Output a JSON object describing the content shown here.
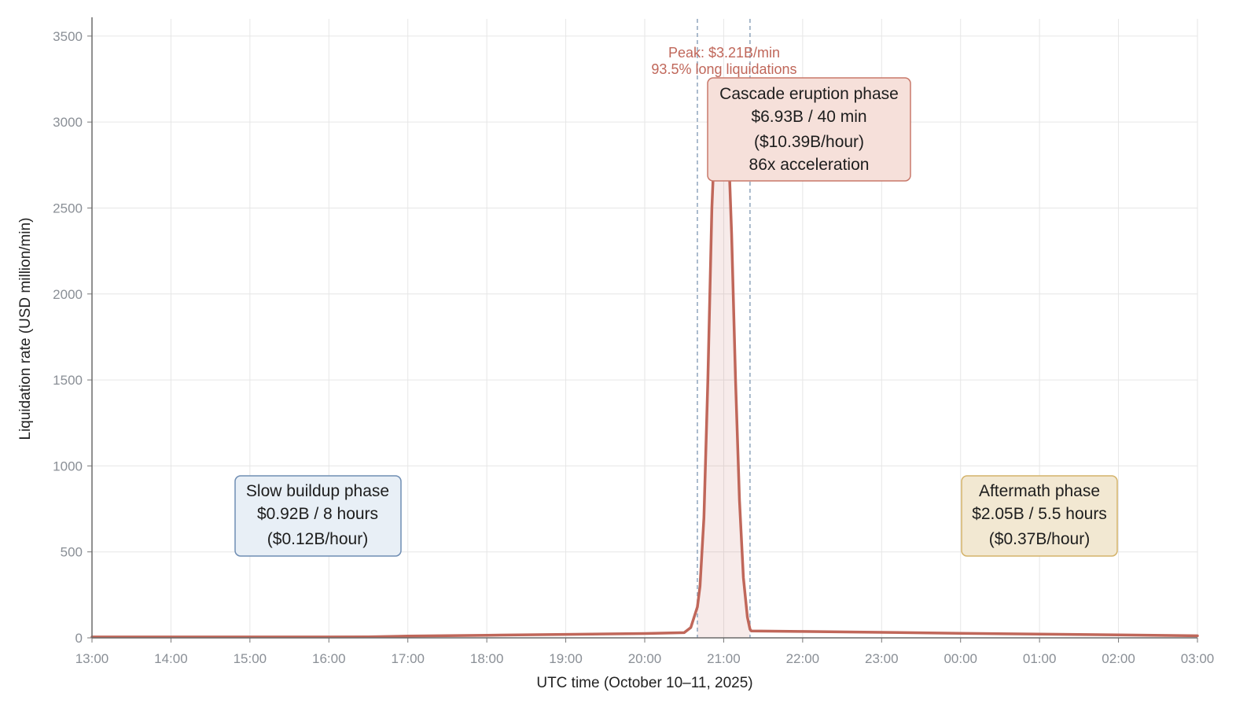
{
  "chart_data": {
    "type": "line",
    "xlabel": "UTC time (October 10–11, 2025)",
    "ylabel": "Liquidation rate (USD million/min)",
    "x_ticks": [
      "13:00",
      "14:00",
      "15:00",
      "16:00",
      "17:00",
      "18:00",
      "19:00",
      "20:00",
      "21:00",
      "22:00",
      "23:00",
      "00:00",
      "01:00",
      "02:00",
      "03:00"
    ],
    "y_ticks": [
      0,
      500,
      1000,
      1500,
      2000,
      2500,
      3000,
      3500
    ],
    "ylim": [
      0,
      3600
    ],
    "grid": true,
    "series": [
      {
        "x": [
          "13:00",
          "14:00",
          "15:00",
          "16:00",
          "16:30",
          "17:00",
          "18:00",
          "19:00",
          "20:00",
          "20:30",
          "20:35",
          "20:40",
          "20:42",
          "20:45",
          "20:48",
          "20:51",
          "20:54",
          "20:57",
          "21:00",
          "21:03",
          "21:06",
          "21:09",
          "21:12",
          "21:15",
          "21:18",
          "21:20",
          "21:21",
          "22:00",
          "23:00",
          "00:00",
          "01:00",
          "02:00",
          "03:00"
        ],
        "values": [
          5,
          5,
          5,
          5,
          6,
          10,
          15,
          20,
          25,
          30,
          60,
          180,
          300,
          700,
          1500,
          2500,
          3050,
          3210,
          3200,
          3000,
          2350,
          1500,
          800,
          350,
          120,
          50,
          40,
          37,
          32,
          26,
          22,
          17,
          12
        ]
      }
    ],
    "phase_markers": [
      "20:40",
      "21:20"
    ],
    "color": "#c0675a",
    "annotations": {
      "peak_line1": "Peak: $3.21B/min",
      "peak_line2": "93.5% long liquidations",
      "phases": [
        {
          "lines": [
            "Slow buildup phase",
            "$0.92B / 8 hours",
            "($0.12B/hour)"
          ],
          "fill": "#e8eff6",
          "stroke": "#6f8db3"
        },
        {
          "lines": [
            "Cascade eruption phase",
            "$6.93B / 40 min",
            "($10.39B/hour)",
            "86x acceleration"
          ],
          "fill": "#f6e0da",
          "stroke": "#c8786a"
        },
        {
          "lines": [
            "Aftermath phase",
            "$2.05B / 5.5 hours",
            "($0.37B/hour)"
          ],
          "fill": "#f2e8d2",
          "stroke": "#d4b36a"
        }
      ]
    }
  }
}
